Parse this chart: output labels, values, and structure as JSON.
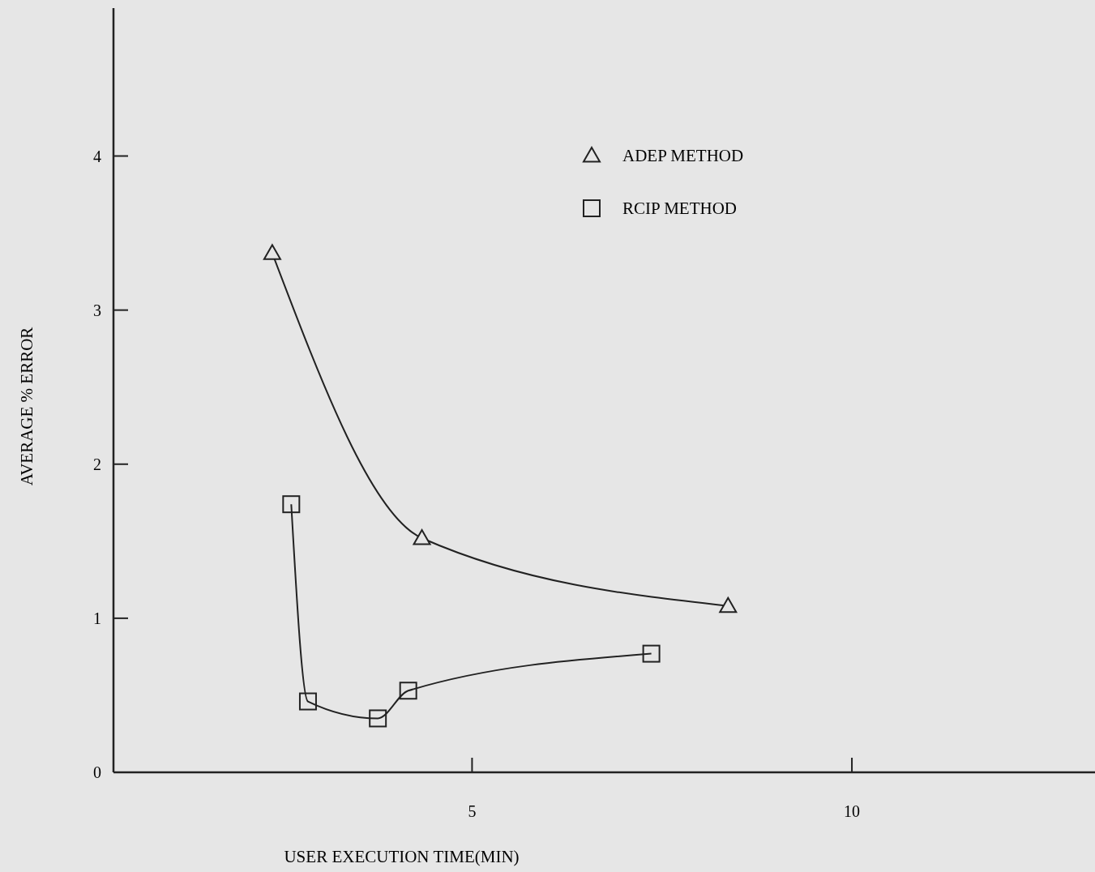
{
  "chart_data": {
    "type": "line",
    "xlabel": "USER EXECUTION TIME(MIN)",
    "ylabel": "AVERAGE % ERROR",
    "xlim": [
      0.28,
      13.2
    ],
    "ylim": [
      0,
      4.96
    ],
    "xticks": [
      5,
      10
    ],
    "yticks": [
      0,
      1,
      2,
      3,
      4
    ],
    "legend": "top",
    "grid": false,
    "series": [
      {
        "name": "ADEP METHOD",
        "color": "#222222",
        "marker": "triangle",
        "x": [
          2.37,
          4.34,
          8.37
        ],
        "values": [
          3.37,
          1.52,
          1.08
        ]
      },
      {
        "name": "RCIP METHOD",
        "color": "#222222",
        "marker": "square",
        "x": [
          2.62,
          2.84,
          3.76,
          4.16,
          7.36
        ],
        "values": [
          1.74,
          0.46,
          0.35,
          0.53,
          0.77
        ]
      }
    ]
  }
}
